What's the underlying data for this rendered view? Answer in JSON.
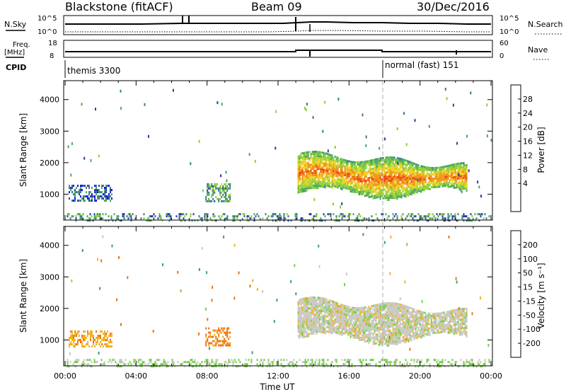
{
  "header": {
    "station": "Blackstone (fitACF)",
    "beam": "Beam 09",
    "date": "30/Dec/2016"
  },
  "status_panel": {
    "labels": {
      "nsky": "N.Sky",
      "freq": "Freq.",
      "freq_unit": "[MHz]",
      "cpid": "CPID",
      "nsearch": "N.Search",
      "nave": "Nave",
      "nsky_top": "10^5",
      "nsky_bottom": "10^0",
      "nsearch_top": "10^5",
      "nsearch_bottom": "10^0",
      "freq_top": "18",
      "freq_bottom": "8",
      "nave_top": "60",
      "nave_bottom": "0"
    },
    "cpid_segments": [
      {
        "label": "themis 3300",
        "start_hour": 0
      },
      {
        "label": "normal (fast) 151",
        "start_hour": 18.0
      }
    ]
  },
  "time_axis": {
    "label": "Time UT",
    "ticks": [
      "00:00",
      "04:00",
      "08:00",
      "12:00",
      "16:00",
      "20:00",
      "00:00"
    ]
  },
  "power_colorbar": {
    "label": "Power [dB]",
    "ticks": [
      "28",
      "24",
      "20",
      "16",
      "12",
      "8",
      "4"
    ],
    "colors": [
      "#1010ff",
      "#2a3aa8",
      "#3a7a8a",
      "#49a85a",
      "#8fd030",
      "#f0d020",
      "#f09010",
      "#f04010",
      "#ff0000"
    ]
  },
  "velocity_colorbar": {
    "label": "Velocity [m s⁻¹]",
    "ticks": [
      "200",
      "100",
      "50",
      "15",
      "-15",
      "-50",
      "-100",
      "-200"
    ],
    "colors": [
      "#2030c0",
      "#2a6a9a",
      "#38a070",
      "#70d040",
      "#c8c8c0",
      "#f0b020",
      "#f07010",
      "#f03010",
      "#ff0000"
    ]
  },
  "chart_data": [
    {
      "type": "heatmap",
      "title": "Power",
      "xlabel": "Time UT",
      "ylabel": "Slant Range [km]",
      "xlim": [
        0,
        24
      ],
      "ylim": [
        180,
        4600
      ],
      "y_ticks": [
        1000,
        2000,
        3000,
        4000
      ],
      "colorbar": "Power [dB]",
      "regions": [
        {
          "t_start": 0.1,
          "t_end": 23.9,
          "r_low": 180,
          "r_high": 400,
          "value": 12
        },
        {
          "t_start": 0.2,
          "t_end": 2.6,
          "r_low": 800,
          "r_high": 1300,
          "value": 8
        },
        {
          "t_start": 7.9,
          "t_end": 9.3,
          "r_low": 800,
          "r_high": 1350,
          "value": 14
        },
        {
          "t_start": 13.1,
          "t_end": 22.6,
          "r_low": 900,
          "r_high": 2300,
          "value": 18
        }
      ]
    },
    {
      "type": "heatmap",
      "title": "Velocity",
      "xlabel": "Time UT",
      "ylabel": "Slant Range [km]",
      "xlim": [
        0,
        24
      ],
      "ylim": [
        180,
        4600
      ],
      "y_ticks": [
        1000,
        2000,
        3000,
        4000
      ],
      "colorbar": "Velocity [m s⁻¹]",
      "regions": [
        {
          "t_start": 0.1,
          "t_end": 23.9,
          "r_low": 180,
          "r_high": 400,
          "value": 20
        },
        {
          "t_start": 0.2,
          "t_end": 2.6,
          "r_low": 800,
          "r_high": 1300,
          "value": -40
        },
        {
          "t_start": 7.9,
          "t_end": 9.3,
          "r_low": 800,
          "r_high": 1400,
          "value": -60
        },
        {
          "t_start": 13.1,
          "t_end": 22.6,
          "r_low": 900,
          "r_high": 2300,
          "value": 0
        }
      ]
    }
  ]
}
